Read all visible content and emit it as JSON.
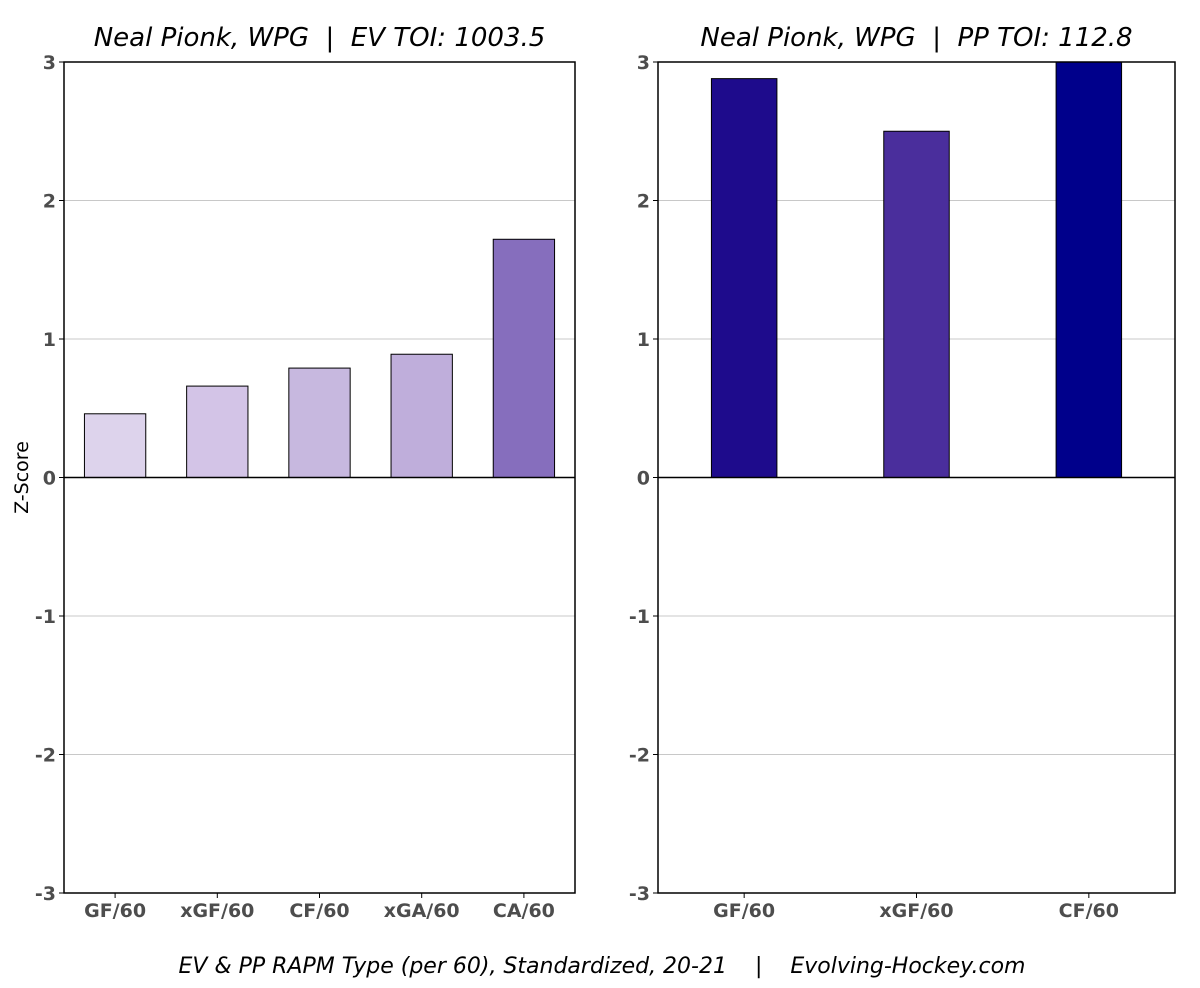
{
  "chart_data": [
    {
      "type": "bar",
      "title": "Neal Pionk, WPG  |  EV TOI: 1003.5",
      "ylabel": "Z-Score",
      "ylim": [
        -3,
        3
      ],
      "yticks": [
        -3,
        -2,
        -1,
        0,
        1,
        2,
        3
      ],
      "grid": true,
      "categories": [
        "GF/60",
        "xGF/60",
        "CF/60",
        "xGA/60",
        "CA/60"
      ],
      "values": [
        0.46,
        0.66,
        0.79,
        0.89,
        1.72
      ],
      "colors": [
        "#ddd3ec",
        "#d3c4e7",
        "#c7b8df",
        "#bfaedb",
        "#866ebd"
      ]
    },
    {
      "type": "bar",
      "title": "Neal Pionk, WPG  |  PP TOI: 112.8",
      "ylabel": "",
      "ylim": [
        -3,
        3
      ],
      "yticks": [
        -3,
        -2,
        -1,
        0,
        1,
        2,
        3
      ],
      "grid": true,
      "categories": [
        "GF/60",
        "xGF/60",
        "CF/60"
      ],
      "values": [
        2.88,
        2.5,
        3.0
      ],
      "colors": [
        "#1e0b8c",
        "#4a2e9c",
        "#00008b"
      ]
    }
  ],
  "caption": "EV & PP RAPM Type (per 60), Standardized, 20-21    |    Evolving-Hockey.com"
}
